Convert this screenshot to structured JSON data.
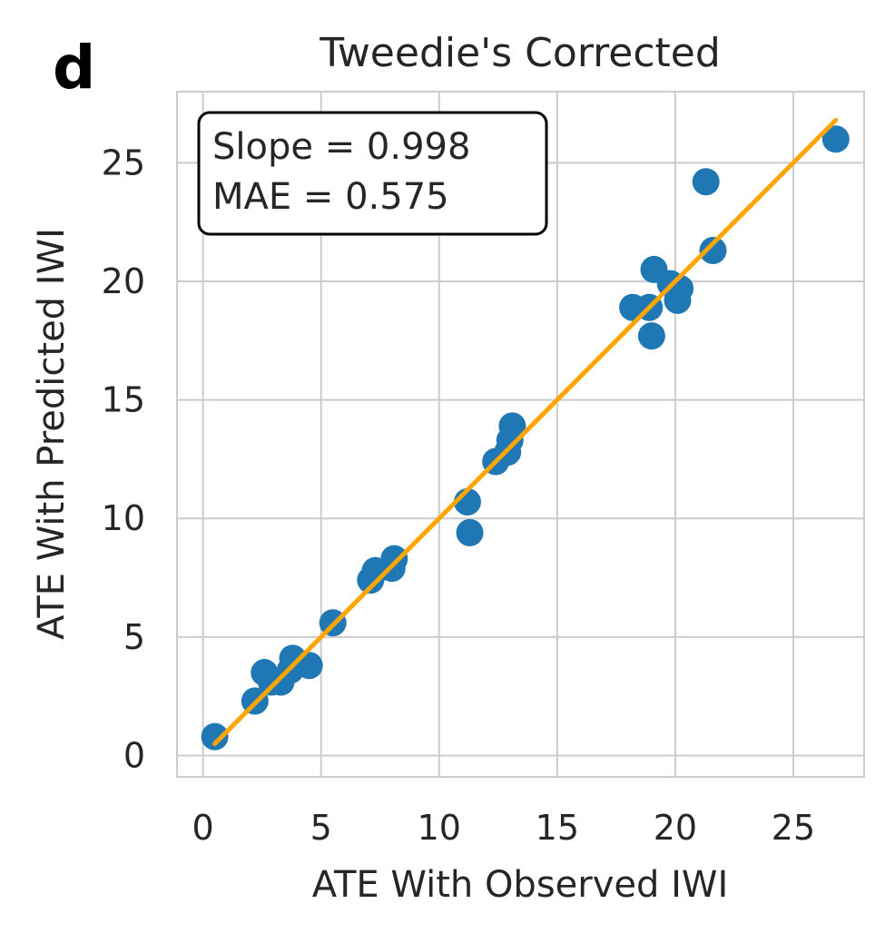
{
  "panel_label": "d",
  "stats_box": {
    "slope_text": "Slope = 0.998",
    "mae_text": "MAE = 0.575"
  },
  "colors": {
    "points": "#1f77b4",
    "fit_line": "#ffa500",
    "identity_line": "#000000",
    "grid": "#cccccc",
    "axes_frame": "#cccccc"
  },
  "chart_data": {
    "type": "scatter",
    "title": "Tweedie's Corrected",
    "xlabel": "ATE With Observed IWI",
    "ylabel": "ATE With Predicted IWI",
    "xlim": [
      -1.1,
      28.0
    ],
    "ylim": [
      -0.9,
      28.0
    ],
    "xticks": [
      0,
      5,
      10,
      15,
      20,
      25
    ],
    "yticks": [
      0,
      5,
      10,
      15,
      20,
      25
    ],
    "xtick_labels": [
      "0",
      "5",
      "10",
      "15",
      "20",
      "25"
    ],
    "ytick_labels": [
      "0",
      "5",
      "10",
      "15",
      "20",
      "25"
    ],
    "grid": true,
    "points": [
      {
        "x": 0.5,
        "y": 0.8
      },
      {
        "x": 2.2,
        "y": 2.3
      },
      {
        "x": 2.6,
        "y": 3.5
      },
      {
        "x": 2.9,
        "y": 3.1
      },
      {
        "x": 3.3,
        "y": 3.1
      },
      {
        "x": 3.7,
        "y": 3.6
      },
      {
        "x": 3.8,
        "y": 4.1
      },
      {
        "x": 4.5,
        "y": 3.8
      },
      {
        "x": 5.5,
        "y": 5.6
      },
      {
        "x": 7.1,
        "y": 7.4
      },
      {
        "x": 7.3,
        "y": 7.8
      },
      {
        "x": 8.0,
        "y": 7.9
      },
      {
        "x": 8.1,
        "y": 8.3
      },
      {
        "x": 11.2,
        "y": 10.7
      },
      {
        "x": 11.3,
        "y": 9.4
      },
      {
        "x": 12.4,
        "y": 12.4
      },
      {
        "x": 12.9,
        "y": 12.8
      },
      {
        "x": 13.0,
        "y": 13.3
      },
      {
        "x": 13.1,
        "y": 13.9
      },
      {
        "x": 18.2,
        "y": 18.9
      },
      {
        "x": 18.9,
        "y": 18.9
      },
      {
        "x": 19.0,
        "y": 17.7
      },
      {
        "x": 19.1,
        "y": 20.5
      },
      {
        "x": 19.8,
        "y": 19.9
      },
      {
        "x": 20.1,
        "y": 19.2
      },
      {
        "x": 20.2,
        "y": 19.7
      },
      {
        "x": 21.3,
        "y": 24.2
      },
      {
        "x": 21.6,
        "y": 21.3
      },
      {
        "x": 26.8,
        "y": 26.0
      }
    ],
    "fit_line": {
      "x": [
        0.5,
        26.8
      ],
      "y": [
        0.5,
        26.8
      ]
    },
    "identity_line": {
      "x": [
        0.5,
        26.8
      ],
      "y": [
        0.5,
        26.8
      ]
    }
  }
}
